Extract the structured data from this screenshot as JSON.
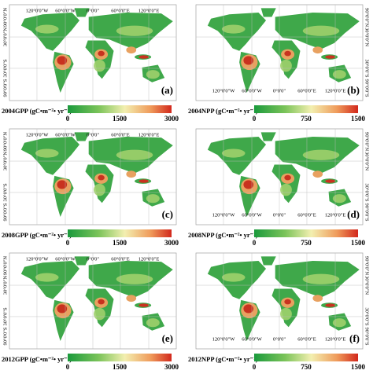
{
  "axes": {
    "lon_labels": [
      "120°0'0\"W",
      "60°0'0\"W",
      "0°0'0\"",
      "60°0'0\"E",
      "120°0'0\"E"
    ],
    "lat_labels": [
      "90°0'0\"N",
      "30°0'0\"N",
      "30°0'0\"S",
      "90°0'0\"S"
    ]
  },
  "panels": [
    {
      "label": "(a)",
      "colorbar": {
        "title": "2004GPP (gC•m⁻²• yr⁻¹)",
        "ticks": [
          0,
          1500,
          3000
        ]
      }
    },
    {
      "label": "(b)",
      "colorbar": {
        "title": "2004NPP (gC•m⁻²• yr⁻¹)",
        "ticks": [
          0,
          750,
          1500
        ]
      }
    },
    {
      "label": "(c)",
      "colorbar": {
        "title": "2008GPP (gC•m⁻²• yr⁻¹)",
        "ticks": [
          0,
          1500,
          3000
        ]
      }
    },
    {
      "label": "(d)",
      "colorbar": {
        "title": "2008NPP (gC•m⁻²• yr⁻¹)",
        "ticks": [
          0,
          750,
          1500
        ]
      }
    },
    {
      "label": "(e)",
      "colorbar": {
        "title": "2012GPP (gC•m⁻²• yr⁻¹)",
        "ticks": [
          0,
          1500,
          3000
        ]
      }
    },
    {
      "label": "(f)",
      "colorbar": {
        "title": "2012NPP (gC•m⁻²• yr⁻¹)",
        "ticks": [
          0,
          750,
          1500
        ]
      }
    }
  ]
}
